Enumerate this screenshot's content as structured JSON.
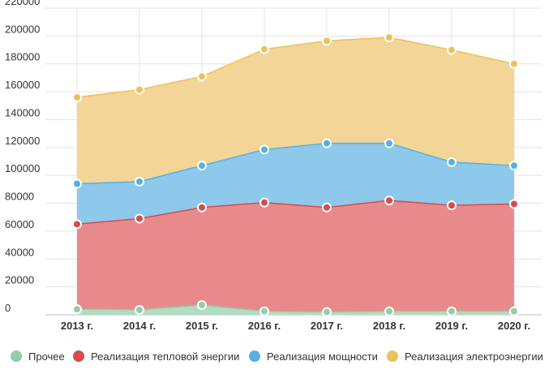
{
  "chart_data": {
    "type": "area",
    "stacked": true,
    "categories": [
      "2013 г.",
      "2014 г.",
      "2015 г.",
      "2016 г.",
      "2017 г.",
      "2018 г.",
      "2019 г.",
      "2020 г."
    ],
    "ylim": [
      0,
      220000
    ],
    "yticks": [
      0,
      20000,
      40000,
      60000,
      80000,
      100000,
      120000,
      140000,
      160000,
      180000,
      200000,
      220000
    ],
    "grid": true,
    "legend_position": "bottom",
    "series": [
      {
        "name": "Прочее",
        "color": "#93cca8",
        "fill": "#b3dcc2",
        "values": [
          4000,
          3500,
          7000,
          2500,
          2000,
          2500,
          2500,
          2500
        ]
      },
      {
        "name": "Реализация тепловой энергии",
        "color": "#d94a4c",
        "fill": "#e88a8c",
        "values": [
          61000,
          65500,
          70000,
          78000,
          75000,
          79500,
          76000,
          77000
        ]
      },
      {
        "name": "Реализация мощности",
        "color": "#54b1e6",
        "fill": "#8ec8ea",
        "values": [
          29000,
          26500,
          30000,
          38000,
          46000,
          41000,
          31000,
          27500
        ]
      },
      {
        "name": "Реализация электроэнергии",
        "color": "#ecc158",
        "fill": "#f2d597",
        "values": [
          62000,
          66000,
          64000,
          72000,
          73500,
          76000,
          80500,
          73000
        ]
      }
    ]
  }
}
